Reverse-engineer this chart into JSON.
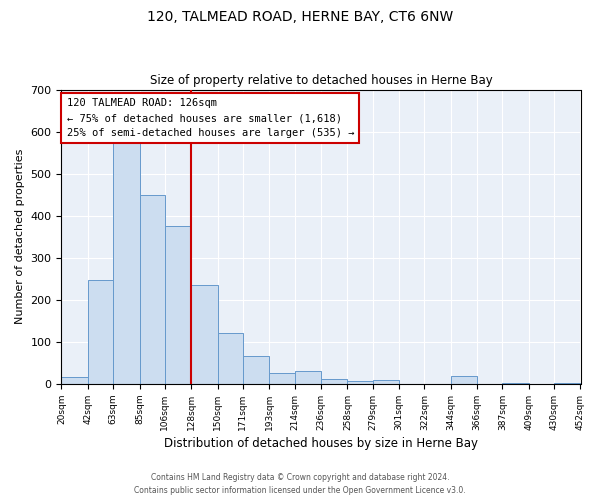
{
  "title": "120, TALMEAD ROAD, HERNE BAY, CT6 6NW",
  "subtitle": "Size of property relative to detached houses in Herne Bay",
  "xlabel": "Distribution of detached houses by size in Herne Bay",
  "ylabel": "Number of detached properties",
  "bin_edges": [
    20,
    42,
    63,
    85,
    106,
    128,
    150,
    171,
    193,
    214,
    236,
    258,
    279,
    301,
    322,
    344,
    366,
    387,
    409,
    430,
    452
  ],
  "bin_heights": [
    17,
    248,
    583,
    450,
    375,
    236,
    120,
    67,
    25,
    30,
    12,
    7,
    10,
    0,
    0,
    20,
    0,
    3,
    0,
    3
  ],
  "bar_facecolor": "#ccddf0",
  "bar_edgecolor": "#6699cc",
  "vline_x": 128,
  "vline_color": "#cc0000",
  "ylim": [
    0,
    700
  ],
  "annotation_title": "120 TALMEAD ROAD: 126sqm",
  "annotation_line1": "← 75% of detached houses are smaller (1,618)",
  "annotation_line2": "25% of semi-detached houses are larger (535) →",
  "annotation_box_edgecolor": "#cc0000",
  "footnote1": "Contains HM Land Registry data © Crown copyright and database right 2024.",
  "footnote2": "Contains public sector information licensed under the Open Government Licence v3.0.",
  "bg_color": "#ffffff",
  "plot_bg_color": "#eaf0f8",
  "grid_color": "#ffffff",
  "yticks": [
    0,
    100,
    200,
    300,
    400,
    500,
    600,
    700
  ]
}
